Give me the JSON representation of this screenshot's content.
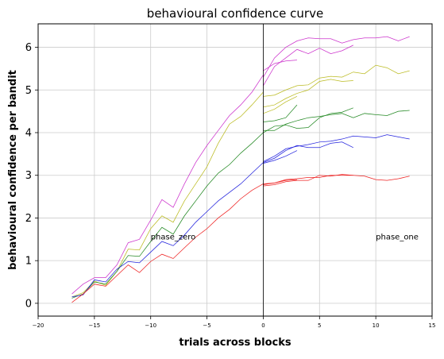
{
  "chart_data": {
    "type": "line",
    "title": "behavioural confidence curve",
    "xlabel": "trials across blocks",
    "ylabel": "behavioural confidence per bandit",
    "xlim": [
      -20,
      15
    ],
    "ylim": [
      -0.3,
      6.55
    ],
    "xticks": [
      -20,
      -15,
      -10,
      -5,
      0,
      5,
      10,
      15
    ],
    "yticks": [
      0,
      1,
      2,
      3,
      4,
      5,
      6
    ],
    "grid": true,
    "vline_x": 0,
    "annotations": [
      {
        "text": "phase_zero",
        "x": -10,
        "y": 1.5
      },
      {
        "text": "phase_one",
        "x": 10,
        "y": 1.5
      }
    ],
    "series": [
      {
        "color": "#cc33cc",
        "x": [
          -17,
          -16,
          -15,
          -14,
          -13,
          -12,
          -11,
          -10,
          -9,
          -8,
          -7,
          -6,
          -5,
          -4,
          -3,
          -2,
          -1,
          0
        ],
        "values": [
          0.22,
          0.45,
          0.6,
          0.6,
          0.9,
          1.42,
          1.5,
          1.95,
          2.43,
          2.25,
          2.8,
          3.3,
          3.7,
          4.05,
          4.4,
          4.65,
          4.95,
          5.35
        ]
      },
      {
        "color": "#bbbb22",
        "x": [
          -17,
          -16,
          -15,
          -14,
          -13,
          -12,
          -11,
          -10,
          -9,
          -8,
          -7,
          -6,
          -5,
          -4,
          -3,
          -2,
          -1,
          0
        ],
        "values": [
          0.15,
          0.25,
          0.52,
          0.42,
          0.75,
          1.27,
          1.25,
          1.75,
          2.05,
          1.9,
          2.4,
          2.8,
          3.2,
          3.75,
          4.2,
          4.38,
          4.65,
          4.95
        ]
      },
      {
        "color": "#228822",
        "x": [
          -17,
          -16,
          -15,
          -14,
          -13,
          -12,
          -11,
          -10,
          -9,
          -8,
          -7,
          -6,
          -5,
          -4,
          -3,
          -2,
          -1,
          0
        ],
        "values": [
          0.12,
          0.22,
          0.5,
          0.45,
          0.75,
          1.12,
          1.1,
          1.45,
          1.78,
          1.62,
          2.05,
          2.4,
          2.75,
          3.05,
          3.25,
          3.52,
          3.75,
          4.0
        ]
      },
      {
        "color": "#2222dd",
        "x": [
          -17,
          -16,
          -15,
          -14,
          -13,
          -12,
          -11,
          -10,
          -9,
          -8,
          -7,
          -6,
          -5,
          -4,
          -3,
          -2,
          -1,
          0
        ],
        "values": [
          0.15,
          0.2,
          0.55,
          0.5,
          0.8,
          0.98,
          0.95,
          1.2,
          1.45,
          1.35,
          1.6,
          1.9,
          2.15,
          2.4,
          2.6,
          2.8,
          3.05,
          3.3
        ]
      },
      {
        "color": "#ee2222",
        "x": [
          -17,
          -16,
          -15,
          -14,
          -13,
          -12,
          -11,
          -10,
          -9,
          -8,
          -7,
          -6,
          -5,
          -4,
          -3,
          -2,
          -1,
          0
        ],
        "values": [
          0.02,
          0.22,
          0.45,
          0.4,
          0.65,
          0.9,
          0.72,
          0.98,
          1.15,
          1.05,
          1.3,
          1.55,
          1.75,
          2.0,
          2.2,
          2.45,
          2.65,
          2.8
        ]
      },
      {
        "color": "#cc33cc",
        "x": [
          0,
          1,
          2,
          3,
          4,
          5,
          6,
          7,
          8,
          9,
          10,
          11,
          12,
          13
        ],
        "values": [
          5.3,
          5.75,
          6.0,
          6.15,
          6.22,
          6.2,
          6.2,
          6.1,
          6.18,
          6.22,
          6.22,
          6.25,
          6.15,
          6.25
        ]
      },
      {
        "color": "#cc33cc",
        "x": [
          0,
          1,
          2,
          3,
          4,
          5,
          6,
          7,
          8
        ],
        "values": [
          5.1,
          5.55,
          5.75,
          5.95,
          5.85,
          5.98,
          5.85,
          5.92,
          6.05
        ]
      },
      {
        "color": "#cc33cc",
        "x": [
          0,
          1,
          2,
          3
        ],
        "values": [
          5.45,
          5.62,
          5.68,
          5.7
        ]
      },
      {
        "color": "#bbbb22",
        "x": [
          0,
          1,
          2,
          3,
          4,
          5,
          6,
          7,
          8,
          9,
          10,
          11,
          12,
          13
        ],
        "values": [
          4.85,
          4.88,
          5.0,
          5.1,
          5.12,
          5.28,
          5.32,
          5.3,
          5.42,
          5.38,
          5.58,
          5.52,
          5.38,
          5.45
        ]
      },
      {
        "color": "#bbbb22",
        "x": [
          0,
          1,
          2,
          3,
          4,
          5,
          6,
          7,
          8
        ],
        "values": [
          4.6,
          4.65,
          4.8,
          4.92,
          5.0,
          5.2,
          5.25,
          5.2,
          5.22
        ]
      },
      {
        "color": "#bbbb22",
        "x": [
          0,
          1,
          2,
          3
        ],
        "values": [
          4.45,
          4.55,
          4.72,
          4.85
        ]
      },
      {
        "color": "#228822",
        "x": [
          0,
          1,
          2,
          3,
          4,
          5,
          6,
          7,
          8,
          9,
          10,
          11,
          12,
          13
        ],
        "values": [
          4.05,
          4.05,
          4.2,
          4.28,
          4.35,
          4.38,
          4.42,
          4.45,
          4.35,
          4.45,
          4.42,
          4.4,
          4.5,
          4.52
        ]
      },
      {
        "color": "#228822",
        "x": [
          0,
          1,
          2,
          3,
          4,
          5,
          6,
          7,
          8
        ],
        "values": [
          4.0,
          4.15,
          4.18,
          4.1,
          4.12,
          4.35,
          4.45,
          4.48,
          4.58
        ]
      },
      {
        "color": "#228822",
        "x": [
          0,
          1,
          2,
          3
        ],
        "values": [
          4.25,
          4.28,
          4.35,
          4.65
        ]
      },
      {
        "color": "#2222dd",
        "x": [
          0,
          1,
          2,
          3,
          4,
          5,
          6,
          7,
          8,
          9,
          10,
          11,
          12,
          13
        ],
        "values": [
          3.32,
          3.45,
          3.62,
          3.68,
          3.72,
          3.78,
          3.8,
          3.85,
          3.92,
          3.9,
          3.88,
          3.95,
          3.9,
          3.85
        ]
      },
      {
        "color": "#2222dd",
        "x": [
          0,
          1,
          2,
          3,
          4,
          5,
          6,
          7,
          8
        ],
        "values": [
          3.3,
          3.4,
          3.58,
          3.7,
          3.65,
          3.65,
          3.75,
          3.78,
          3.65
        ]
      },
      {
        "color": "#2222dd",
        "x": [
          0,
          1,
          2,
          3
        ],
        "values": [
          3.28,
          3.35,
          3.45,
          3.58
        ]
      },
      {
        "color": "#ee2222",
        "x": [
          0,
          1,
          2,
          3,
          4,
          5,
          6,
          7,
          8,
          9,
          10,
          11,
          12,
          13
        ],
        "values": [
          2.8,
          2.82,
          2.9,
          2.92,
          2.95,
          2.95,
          3.0,
          3.0,
          3.0,
          2.98,
          2.9,
          2.88,
          2.92,
          2.98
        ]
      },
      {
        "color": "#ee2222",
        "x": [
          0,
          1,
          2,
          3,
          4,
          5,
          6,
          7,
          8
        ],
        "values": [
          2.75,
          2.78,
          2.85,
          2.88,
          2.88,
          3.0,
          2.98,
          3.02,
          3.0
        ]
      },
      {
        "color": "#ee2222",
        "x": [
          0,
          1,
          2,
          3
        ],
        "values": [
          2.78,
          2.82,
          2.88,
          2.9
        ]
      }
    ]
  }
}
